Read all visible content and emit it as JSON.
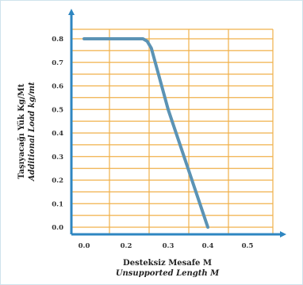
{
  "chart_data": {
    "type": "line",
    "title": "",
    "xlabel": [
      "Desteksiz Mesafe M",
      "Unsupported Length M"
    ],
    "ylabel": [
      "Taşıyacağı Yük Kg/Mt",
      "Additional Load kg/mt"
    ],
    "x_ticks": [
      "0.0",
      "0.2",
      "0.3",
      "0.4",
      "0.5"
    ],
    "y_ticks": [
      "0.0",
      "0.1",
      "0.2",
      "0.3",
      "0.4",
      "0.5",
      "0.6",
      "0.7",
      "0.8"
    ],
    "series": [
      {
        "points": [
          [
            0.0,
            0.8
          ],
          [
            0.2,
            0.8
          ],
          [
            0.24,
            0.8
          ],
          [
            0.25,
            0.79
          ],
          [
            0.26,
            0.76
          ],
          [
            0.3,
            0.5
          ],
          [
            0.35,
            0.25
          ],
          [
            0.4,
            0.0
          ]
        ]
      }
    ],
    "grid": true,
    "colors": {
      "grid": "#f0b04a",
      "axis": "#2e86c1",
      "line": "#5b93b5"
    }
  }
}
